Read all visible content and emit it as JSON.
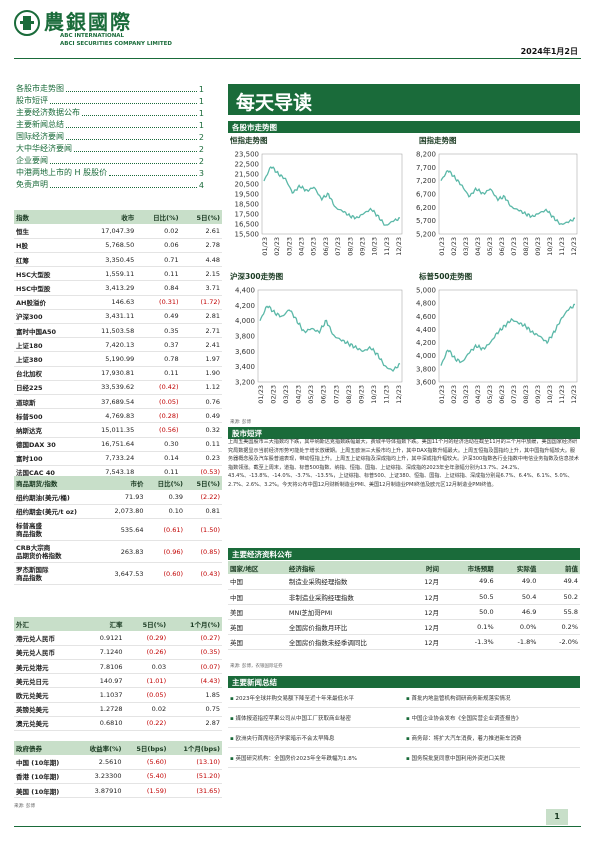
{
  "header": {
    "logo_cn": "農銀國際",
    "logo_en1": "ABC INTERNATIONAL",
    "logo_en2": "ABCI SECURITIES COMPANY LIMITED",
    "date": "2024年1月2日",
    "brand_color": "#1a6b3a"
  },
  "toc": [
    {
      "label": "各股市走势图",
      "page": "1"
    },
    {
      "label": "股市短评",
      "page": "1"
    },
    {
      "label": "主要经济数据公布",
      "page": "1"
    },
    {
      "label": "主要新闻总结",
      "page": "1"
    },
    {
      "label": "国际经济要闻",
      "page": "2"
    },
    {
      "label": "大中华经济要闻",
      "page": "2"
    },
    {
      "label": "企业要闻",
      "page": "2"
    },
    {
      "label": "中港两地上市的 H 股股价",
      "page": "3"
    },
    {
      "label": "免责声明",
      "page": "4"
    }
  ],
  "indices": {
    "headers": [
      "指数",
      "收市",
      "日比(%)",
      "5日(%)"
    ],
    "rows": [
      [
        "恒生",
        "17,047.39",
        "0.02",
        "2.61"
      ],
      [
        "H股",
        "5,768.50",
        "0.06",
        "2.78"
      ],
      [
        "红筹",
        "3,350.45",
        "0.71",
        "4.48"
      ],
      [
        "HSC大型股",
        "1,559.11",
        "0.11",
        "2.15"
      ],
      [
        "HSC中型股",
        "3,413.29",
        "0.84",
        "3.71"
      ],
      [
        "AH股溢价",
        "146.63",
        "(0.31)",
        "(1.72)"
      ],
      [
        "沪深300",
        "3,431.11",
        "0.49",
        "2.81"
      ],
      [
        "富时中国A50",
        "11,503.58",
        "0.35",
        "2.71"
      ],
      [
        "上证180",
        "7,420.13",
        "0.37",
        "2.41"
      ],
      [
        "上证380",
        "5,190.99",
        "0.78",
        "1.97"
      ],
      [
        "台北加权",
        "17,930.81",
        "0.11",
        "1.90"
      ],
      [
        "日经225",
        "33,539.62",
        "(0.42)",
        "1.12"
      ],
      [
        "道琼斯",
        "37,689.54",
        "(0.05)",
        "0.76"
      ],
      [
        "标普500",
        "4,769.83",
        "(0.28)",
        "0.49"
      ],
      [
        "纳斯达克",
        "15,011.35",
        "(0.56)",
        "0.32"
      ],
      [
        "德国DAX 30",
        "16,751.64",
        "0.30",
        "0.11"
      ],
      [
        "富时100",
        "7,733.24",
        "0.14",
        "0.23"
      ],
      [
        "法国CAC 40",
        "7,543.18",
        "0.11",
        "(0.53)"
      ]
    ]
  },
  "commodities": {
    "headers": [
      "商品期货/指数",
      "市价",
      "日比(%)",
      "5日(%)"
    ],
    "rows": [
      [
        "纽约期油(美元/桶)",
        "71.93",
        "0.39",
        "(2.22)"
      ],
      [
        "纽约期金(美元/t oz)",
        "2,073.80",
        "0.10",
        "0.81"
      ],
      [
        "标普高盛\n商品指数",
        "535.64",
        "(0.61)",
        "(1.50)"
      ],
      [
        "CRB大宗商\n品期货价格指数",
        "263.83",
        "(0.96)",
        "(0.85)"
      ],
      [
        "罗杰斯国际\n商品指数",
        "3,647.53",
        "(0.60)",
        "(0.43)"
      ]
    ]
  },
  "fx": {
    "headers": [
      "外汇",
      "汇率",
      "5日(%)",
      "1个月(%)"
    ],
    "rows": [
      [
        "港元兑人民币",
        "0.9121",
        "(0.29)",
        "(0.27)"
      ],
      [
        "美元兑人民币",
        "7.1240",
        "(0.26)",
        "(0.35)"
      ],
      [
        "美元兑港元",
        "7.8106",
        "0.03",
        "(0.07)"
      ],
      [
        "美元兑日元",
        "140.97",
        "(1.01)",
        "(4.43)"
      ],
      [
        "欧元兑美元",
        "1.1037",
        "(0.05)",
        "1.85"
      ],
      [
        "英镑兑美元",
        "1.2728",
        "0.02",
        "0.75"
      ],
      [
        "澳元兑美元",
        "0.6810",
        "(0.22)",
        "2.87"
      ]
    ]
  },
  "bonds": {
    "headers": [
      "政府债券",
      "收益率(%)",
      "5日(bps)",
      "1个月(bps)"
    ],
    "rows": [
      [
        "中国 (10年期)",
        "2.5610",
        "(5.60)",
        "(13.10)"
      ],
      [
        "香港 (10年期)",
        "3.23300",
        "(5.40)",
        "(51.20)"
      ],
      [
        "美国 (10年期)",
        "3.87910",
        "(1.59)",
        "(31.65)"
      ]
    ],
    "source": "来源: 彭博"
  },
  "main_title": "每天导读",
  "charts_section": "各股市走势图",
  "charts_source": "来源: 彭博",
  "chart_data": [
    {
      "type": "line",
      "title": "恒指走势图",
      "y_ticks": [
        "23,500",
        "22,500",
        "21,500",
        "20,500",
        "19,500",
        "18,500",
        "17,500",
        "16,500",
        "15,500"
      ],
      "ylim": [
        15500,
        23500
      ],
      "x_ticks": [
        "01/23",
        "02/23",
        "03/23",
        "04/23",
        "05/23",
        "06/23",
        "07/23",
        "08/23",
        "09/23",
        "10/23",
        "11/23",
        "12/23"
      ],
      "values": [
        20800,
        22300,
        21500,
        21000,
        19600,
        20300,
        19800,
        20200,
        19000,
        19500,
        18100,
        17800,
        17300,
        17100,
        17600,
        18000,
        17200,
        16300,
        16800,
        17050
      ]
    },
    {
      "type": "line",
      "title": "国指走势图",
      "y_ticks": [
        "8,200",
        "7,700",
        "7,200",
        "6,700",
        "6,200",
        "5,700",
        "5,200"
      ],
      "ylim": [
        5200,
        8200
      ],
      "x_ticks": [
        "01/23",
        "02/23",
        "03/23",
        "04/23",
        "05/23",
        "06/23",
        "07/23",
        "08/23",
        "09/23",
        "10/23",
        "11/23",
        "12/23"
      ],
      "values": [
        7200,
        7600,
        7300,
        7000,
        6600,
        6900,
        6700,
        6900,
        6500,
        6600,
        6200,
        6100,
        5950,
        5850,
        6000,
        6100,
        5800,
        5550,
        5650,
        5770
      ]
    },
    {
      "type": "line",
      "title": "沪深300走势图",
      "y_ticks": [
        "4,400",
        "4,200",
        "4,000",
        "3,800",
        "3,600",
        "3,400",
        "3,200"
      ],
      "ylim": [
        3200,
        4400
      ],
      "x_ticks": [
        "01/23",
        "02/23",
        "03/23",
        "04/23",
        "05/23",
        "06/23",
        "07/23",
        "08/23",
        "09/23",
        "10/23",
        "11/23",
        "12/23"
      ],
      "values": [
        4000,
        4200,
        4100,
        4050,
        4150,
        4000,
        3850,
        3900,
        3850,
        4000,
        3800,
        3750,
        3700,
        3650,
        3600,
        3650,
        3550,
        3400,
        3350,
        3431
      ]
    },
    {
      "type": "line",
      "title": "标普500走势图",
      "y_ticks": [
        "5,000",
        "4,800",
        "4,600",
        "4,400",
        "4,200",
        "4,000",
        "3,800",
        "3,600"
      ],
      "ylim": [
        3600,
        5000
      ],
      "x_ticks": [
        "01/23",
        "02/23",
        "03/23",
        "04/23",
        "05/23",
        "06/23",
        "07/23",
        "08/23",
        "09/23",
        "10/23",
        "11/23",
        "12/23"
      ],
      "values": [
        3850,
        4100,
        3950,
        3900,
        4050,
        4150,
        4100,
        4200,
        4350,
        4450,
        4550,
        4500,
        4450,
        4350,
        4300,
        4200,
        4350,
        4550,
        4700,
        4770
      ]
    }
  ],
  "commentary": {
    "title": "股市短评",
    "text": "上周五美国股市三大指数均下跌，其中纳斯达克指数跌幅最大，费城半导体指数下跌。美国11个月的经济活动在截至11月的三个月中放缓，美国国家经济研究局数据显示当前经济形势可能处于增长放缓期。上周五欧洲三大股市均上升，其中DAX指数升幅最大。上周五恒指及国指均上升，其中国指升幅较大。服务器概念股及汽车股普遍表现，带动恒指上升。上周五上证综指及深成指均上升，其中深成指升幅较大。沪深300指数各行业指数中电信业务指数及信息技术指数领涨。截至上周末，道指、标普500指数、纳指、恒指、国指、上证综指、深成指的2023年全年涨幅分别为13.7%、24.2%、43.4%、-13.8%、-14.0%、-3.7%、-13.5%，上证综指、标普500、上证380、恒指、国指、上证综指、深成指分别是6.7%、6.4%、6.1%、5.0%、2.7%、2.6%、3.2%。今天将公布中国12月财新制造业PMI、美国12月制造业PMI终值及欧元区12月制造业PMI终值。"
  },
  "econ": {
    "title": "主要经济资料公布",
    "headers": [
      "国家/地区",
      "经济指标",
      "时间",
      "市场预期",
      "实际值",
      "前值"
    ],
    "rows": [
      [
        "中国",
        "制造业采购经理指数",
        "12月",
        "49.6",
        "49.0",
        "49.4"
      ],
      [
        "中国",
        "非制造业采购经理指数",
        "12月",
        "50.5",
        "50.4",
        "50.2"
      ],
      [
        "美国",
        "MNI芝加哥PMI",
        "12月",
        "50.0",
        "46.9",
        "55.8"
      ],
      [
        "英国",
        "全国房价指数月环比",
        "12月",
        "0.1%",
        "0.0%",
        "0.2%"
      ],
      [
        "英国",
        "全国房价指数未经季调同比",
        "12月",
        "-1.3%",
        "-1.8%",
        "-2.0%"
      ]
    ],
    "source": "来源: 彭博，农银国际证券"
  },
  "news": {
    "title": "主要新闻总结",
    "items": [
      [
        "2023年全球并购交易额下降至近十年来最低水平",
        "首批内地监管机构调研商务新规落实情况"
      ],
      [
        "媒体报道指控苹果公司从中国工厂获取商业秘密",
        "中国企业协会发布《全国民营企业调查报告》"
      ],
      [
        "欧洲央行首席经济学家暗示不会太早降息",
        "商务部：将扩大汽车消费，着力推进新车消费"
      ],
      [
        "英国研究机构：全国房价2023年全年跌幅为1.8%",
        "国务院批复同意中国利用外资进口关税"
      ]
    ]
  },
  "page_number": "1"
}
